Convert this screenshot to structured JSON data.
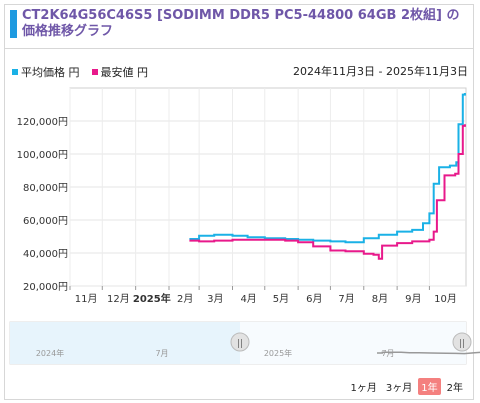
{
  "title": "CT2K64G56C46S5 [SODIMM DDR5 PC5-44800 64GB 2枚組] の価格推移グラフ",
  "legend": {
    "avg_label": "平均価格 円",
    "min_label": "最安値 円"
  },
  "date_range": "2024年11月3日 - 2025年11月3日",
  "colors": {
    "avg": "#1ab1e6",
    "min": "#e8198b",
    "accent": "#1e9ae0",
    "title": "#6f57a8",
    "active_range": "#f4807f"
  },
  "range_buttons": [
    {
      "label": "1ヶ月",
      "active": false
    },
    {
      "label": "3ヶ月",
      "active": false
    },
    {
      "label": "1年",
      "active": true
    },
    {
      "label": "2年",
      "active": false
    }
  ],
  "navigator": {
    "labels": [
      "2024年",
      "7月",
      "2025年",
      "7月"
    ]
  },
  "chart_data": {
    "type": "line",
    "xlabel": "",
    "ylabel": "",
    "ylim": [
      20000,
      140000
    ],
    "xlim": [
      "2024-11-01",
      "2025-11-04"
    ],
    "grid": true,
    "legend_position": "top-left",
    "y_ticks": [
      "20,000円",
      "40,000円",
      "60,000円",
      "80,000円",
      "100,000円",
      "120,000円"
    ],
    "x_ticks": [
      "11月",
      "12月",
      "2025年",
      "2月",
      "3月",
      "4月",
      "5月",
      "6月",
      "7月",
      "8月",
      "9月",
      "10月"
    ],
    "series": [
      {
        "name": "平均価格 円",
        "points": [
          [
            "2025-02-20",
            48500
          ],
          [
            "2025-03-01",
            48500
          ],
          [
            "2025-03-01",
            50500
          ],
          [
            "2025-03-15",
            51000
          ],
          [
            "2025-04-01",
            50500
          ],
          [
            "2025-04-15",
            49500
          ],
          [
            "2025-05-01",
            49000
          ],
          [
            "2025-05-20",
            48500
          ],
          [
            "2025-06-01",
            48000
          ],
          [
            "2025-06-15",
            47500
          ],
          [
            "2025-07-01",
            47000
          ],
          [
            "2025-07-15",
            46500
          ],
          [
            "2025-08-01",
            49000
          ],
          [
            "2025-08-15",
            51000
          ],
          [
            "2025-09-01",
            53000
          ],
          [
            "2025-09-15",
            54000
          ],
          [
            "2025-09-25",
            58000
          ],
          [
            "2025-10-01",
            64000
          ],
          [
            "2025-10-05",
            82000
          ],
          [
            "2025-10-10",
            92000
          ],
          [
            "2025-10-20",
            93000
          ],
          [
            "2025-10-26",
            95000
          ],
          [
            "2025-10-28",
            118000
          ],
          [
            "2025-11-01",
            136000
          ],
          [
            "2025-11-03",
            137000
          ]
        ]
      },
      {
        "name": "最安値 円",
        "points": [
          [
            "2025-02-20",
            47500
          ],
          [
            "2025-03-01",
            47000
          ],
          [
            "2025-03-15",
            47500
          ],
          [
            "2025-04-01",
            48000
          ],
          [
            "2025-04-15",
            48000
          ],
          [
            "2025-05-01",
            48000
          ],
          [
            "2025-05-20",
            47500
          ],
          [
            "2025-06-01",
            46500
          ],
          [
            "2025-06-15",
            44000
          ],
          [
            "2025-07-01",
            41500
          ],
          [
            "2025-07-15",
            41000
          ],
          [
            "2025-08-01",
            39500
          ],
          [
            "2025-08-10",
            39000
          ],
          [
            "2025-08-15",
            36500
          ],
          [
            "2025-08-18",
            44500
          ],
          [
            "2025-09-01",
            46000
          ],
          [
            "2025-09-15",
            47000
          ],
          [
            "2025-10-01",
            48000
          ],
          [
            "2025-10-05",
            53000
          ],
          [
            "2025-10-08",
            72000
          ],
          [
            "2025-10-15",
            87000
          ],
          [
            "2025-10-25",
            88000
          ],
          [
            "2025-10-28",
            100000
          ],
          [
            "2025-11-01",
            117000
          ],
          [
            "2025-11-03",
            118000
          ]
        ]
      }
    ]
  }
}
